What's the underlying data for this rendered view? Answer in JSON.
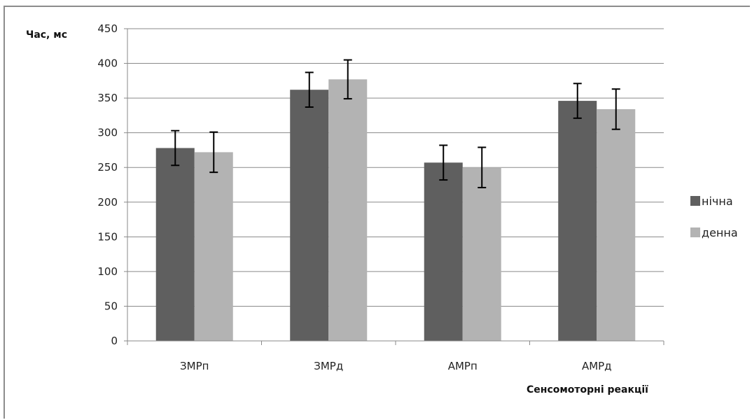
{
  "chart_data": {
    "type": "bar",
    "title": "",
    "xlabel": "Сенсомоторні реакції",
    "ylabel": "Час, мс",
    "ylim": [
      0,
      450
    ],
    "yticks": [
      0,
      50,
      100,
      150,
      200,
      250,
      300,
      350,
      400,
      450
    ],
    "categories": [
      "ЗМРп",
      "ЗМРд",
      "АМРп",
      "АМРд"
    ],
    "series": [
      {
        "name": "нічна",
        "color": "#5f5f5f",
        "values": [
          278,
          362,
          257,
          346
        ],
        "errors": [
          25,
          25,
          25,
          25
        ]
      },
      {
        "name": "денна",
        "color": "#b3b3b3",
        "values": [
          272,
          377,
          250,
          334
        ],
        "errors": [
          29,
          28,
          29,
          29
        ]
      }
    ],
    "grid": true,
    "legend_position": "right"
  }
}
